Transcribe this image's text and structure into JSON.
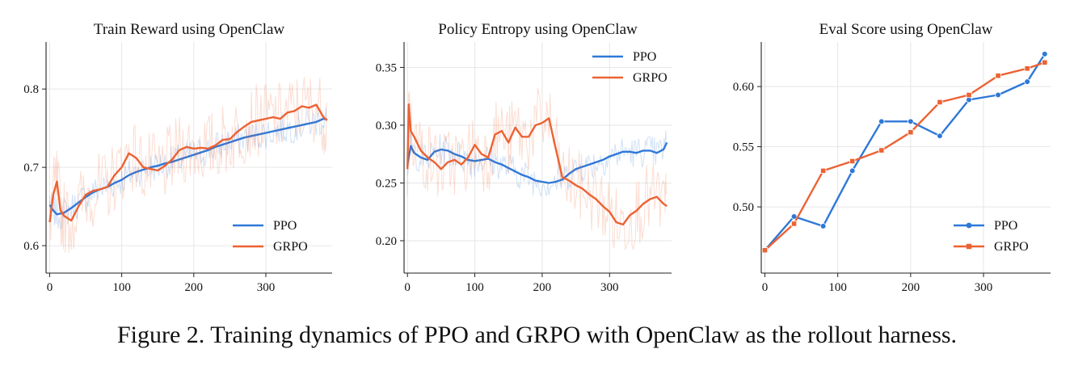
{
  "caption": "Figure 2. Training dynamics of PPO and GRPO with OpenClaw as the rollout harness.",
  "colors": {
    "ppo": "#2e78d8",
    "grpo": "#ec6233",
    "grid": "#e6e6e6",
    "axis": "#222222"
  },
  "chart_data": [
    {
      "type": "line",
      "title": "Train Reward using OpenClaw",
      "xlabel": "",
      "ylabel": "",
      "xlim": [
        -5,
        392
      ],
      "ylim": [
        0.565,
        0.86
      ],
      "xticks": [
        0,
        100,
        200,
        300
      ],
      "yticks": [
        0.6,
        0.7,
        0.8
      ],
      "yticklabels": [
        "0.6",
        "0.7",
        "0.8"
      ],
      "grid": true,
      "legend": "bottom-right",
      "raw_traces_shown": true,
      "series": [
        {
          "name": "PPO",
          "x": [
            0,
            5,
            10,
            20,
            30,
            40,
            50,
            60,
            70,
            80,
            90,
            100,
            110,
            120,
            130,
            140,
            150,
            160,
            170,
            180,
            190,
            200,
            210,
            220,
            230,
            240,
            250,
            260,
            270,
            280,
            290,
            300,
            310,
            320,
            330,
            340,
            350,
            360,
            370,
            380,
            385
          ],
          "values": [
            0.652,
            0.645,
            0.64,
            0.642,
            0.648,
            0.655,
            0.662,
            0.668,
            0.672,
            0.675,
            0.68,
            0.684,
            0.69,
            0.694,
            0.697,
            0.7,
            0.702,
            0.705,
            0.707,
            0.71,
            0.713,
            0.716,
            0.719,
            0.722,
            0.726,
            0.729,
            0.732,
            0.735,
            0.738,
            0.74,
            0.742,
            0.744,
            0.746,
            0.748,
            0.75,
            0.752,
            0.754,
            0.756,
            0.758,
            0.762,
            0.761
          ]
        },
        {
          "name": "GRPO",
          "x": [
            0,
            5,
            10,
            15,
            20,
            30,
            40,
            50,
            60,
            70,
            80,
            90,
            100,
            110,
            120,
            130,
            140,
            150,
            160,
            170,
            180,
            190,
            200,
            210,
            220,
            230,
            240,
            250,
            260,
            270,
            280,
            290,
            300,
            310,
            320,
            330,
            340,
            350,
            360,
            370,
            380,
            385
          ],
          "values": [
            0.63,
            0.665,
            0.682,
            0.645,
            0.638,
            0.632,
            0.65,
            0.665,
            0.67,
            0.672,
            0.675,
            0.69,
            0.7,
            0.718,
            0.712,
            0.7,
            0.698,
            0.696,
            0.702,
            0.71,
            0.722,
            0.726,
            0.724,
            0.725,
            0.724,
            0.728,
            0.735,
            0.736,
            0.745,
            0.752,
            0.758,
            0.76,
            0.762,
            0.764,
            0.762,
            0.77,
            0.772,
            0.778,
            0.776,
            0.78,
            0.764,
            0.76
          ]
        }
      ]
    },
    {
      "type": "line",
      "title": "Policy Entropy using OpenClaw",
      "xlabel": "",
      "ylabel": "",
      "xlim": [
        -5,
        392
      ],
      "ylim": [
        0.172,
        0.372
      ],
      "xticks": [
        0,
        100,
        200,
        300
      ],
      "yticks": [
        0.2,
        0.25,
        0.3,
        0.35
      ],
      "yticklabels": [
        "0.20",
        "0.25",
        "0.30",
        "0.35"
      ],
      "grid": true,
      "legend": "top-right",
      "raw_traces_shown": true,
      "series": [
        {
          "name": "PPO",
          "x": [
            0,
            5,
            10,
            20,
            30,
            40,
            50,
            60,
            70,
            80,
            90,
            100,
            110,
            120,
            130,
            140,
            150,
            160,
            170,
            180,
            190,
            200,
            210,
            220,
            230,
            240,
            250,
            260,
            270,
            280,
            290,
            300,
            310,
            320,
            330,
            340,
            350,
            360,
            370,
            380,
            385
          ],
          "values": [
            0.266,
            0.282,
            0.276,
            0.272,
            0.27,
            0.277,
            0.279,
            0.278,
            0.275,
            0.273,
            0.27,
            0.269,
            0.27,
            0.271,
            0.268,
            0.266,
            0.263,
            0.26,
            0.257,
            0.255,
            0.252,
            0.251,
            0.25,
            0.251,
            0.253,
            0.258,
            0.262,
            0.264,
            0.266,
            0.268,
            0.27,
            0.273,
            0.275,
            0.277,
            0.277,
            0.276,
            0.278,
            0.278,
            0.276,
            0.279,
            0.285
          ]
        },
        {
          "name": "GRPO",
          "x": [
            0,
            2,
            5,
            10,
            20,
            30,
            40,
            50,
            60,
            70,
            80,
            90,
            100,
            110,
            120,
            130,
            140,
            150,
            160,
            170,
            180,
            190,
            200,
            210,
            220,
            230,
            240,
            250,
            260,
            270,
            280,
            290,
            300,
            310,
            320,
            330,
            340,
            350,
            360,
            370,
            380,
            385
          ],
          "values": [
            0.262,
            0.318,
            0.295,
            0.29,
            0.278,
            0.272,
            0.268,
            0.262,
            0.268,
            0.27,
            0.266,
            0.272,
            0.283,
            0.275,
            0.272,
            0.292,
            0.295,
            0.285,
            0.298,
            0.29,
            0.29,
            0.3,
            0.302,
            0.306,
            0.28,
            0.255,
            0.252,
            0.248,
            0.245,
            0.24,
            0.236,
            0.23,
            0.225,
            0.216,
            0.214,
            0.222,
            0.226,
            0.232,
            0.236,
            0.238,
            0.232,
            0.23
          ]
        }
      ]
    },
    {
      "type": "line",
      "title": "Eval Score using OpenClaw",
      "xlabel": "",
      "ylabel": "",
      "xlim": [
        -5,
        392
      ],
      "ylim": [
        0.445,
        0.637
      ],
      "xticks": [
        0,
        100,
        200,
        300
      ],
      "yticks": [
        0.5,
        0.55,
        0.6
      ],
      "yticklabels": [
        "0.50",
        "0.55",
        "0.60"
      ],
      "grid": true,
      "legend": "bottom-right",
      "series": [
        {
          "name": "PPO",
          "marker": "circle",
          "x": [
            0,
            40,
            80,
            120,
            160,
            200,
            240,
            280,
            320,
            360,
            384
          ],
          "values": [
            0.464,
            0.492,
            0.484,
            0.53,
            0.571,
            0.571,
            0.559,
            0.589,
            0.593,
            0.604,
            0.627
          ]
        },
        {
          "name": "GRPO",
          "marker": "square",
          "x": [
            0,
            40,
            80,
            120,
            160,
            200,
            240,
            280,
            320,
            360,
            384
          ],
          "values": [
            0.464,
            0.486,
            0.53,
            0.538,
            0.547,
            0.562,
            0.587,
            0.593,
            0.609,
            0.615,
            0.62
          ]
        }
      ]
    }
  ]
}
